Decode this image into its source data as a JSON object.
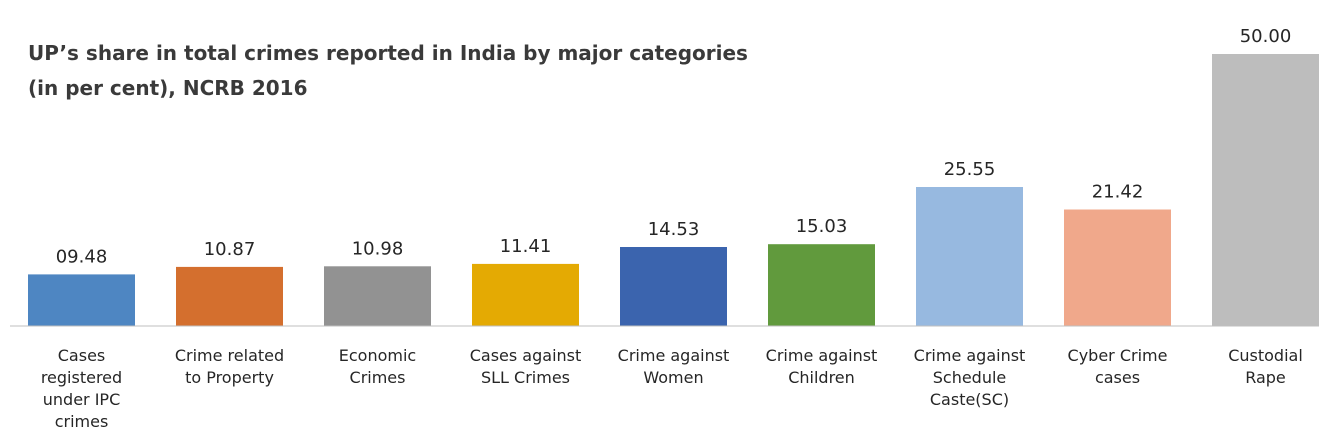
{
  "chart_data": {
    "type": "bar",
    "title": "UP’s share in total crimes reported in India by major categories",
    "subtitle": "(in per cent), NCRB 2016",
    "categories": [
      [
        "Cases",
        "registered",
        "under IPC",
        "crimes"
      ],
      [
        "Crime related",
        "to Property"
      ],
      [
        "Economic",
        "Crimes"
      ],
      [
        "Cases against",
        "SLL Crimes"
      ],
      [
        "Crime against",
        "Women"
      ],
      [
        "Crime against",
        "Children"
      ],
      [
        "Crime against",
        "Schedule",
        "Caste(SC)"
      ],
      [
        "Cyber Crime",
        "cases"
      ],
      [
        "Custodial",
        "Rape"
      ]
    ],
    "values": [
      9.48,
      10.87,
      10.98,
      11.41,
      14.53,
      15.03,
      25.55,
      21.42,
      50.0
    ],
    "value_labels": [
      "09.48",
      "10.87",
      "10.98",
      "11.41",
      "14.53",
      "15.03",
      "25.55",
      "21.42",
      "50.00"
    ],
    "colors": [
      "#4e86c2",
      "#d46f2e",
      "#929292",
      "#e4aa03",
      "#3b64ae",
      "#619a3d",
      "#97b9e0",
      "#f0a88b",
      "#bdbdbd"
    ],
    "xlabel": "",
    "ylabel": "",
    "ylim": [
      0,
      50
    ],
    "grid": false,
    "legend": "none"
  }
}
